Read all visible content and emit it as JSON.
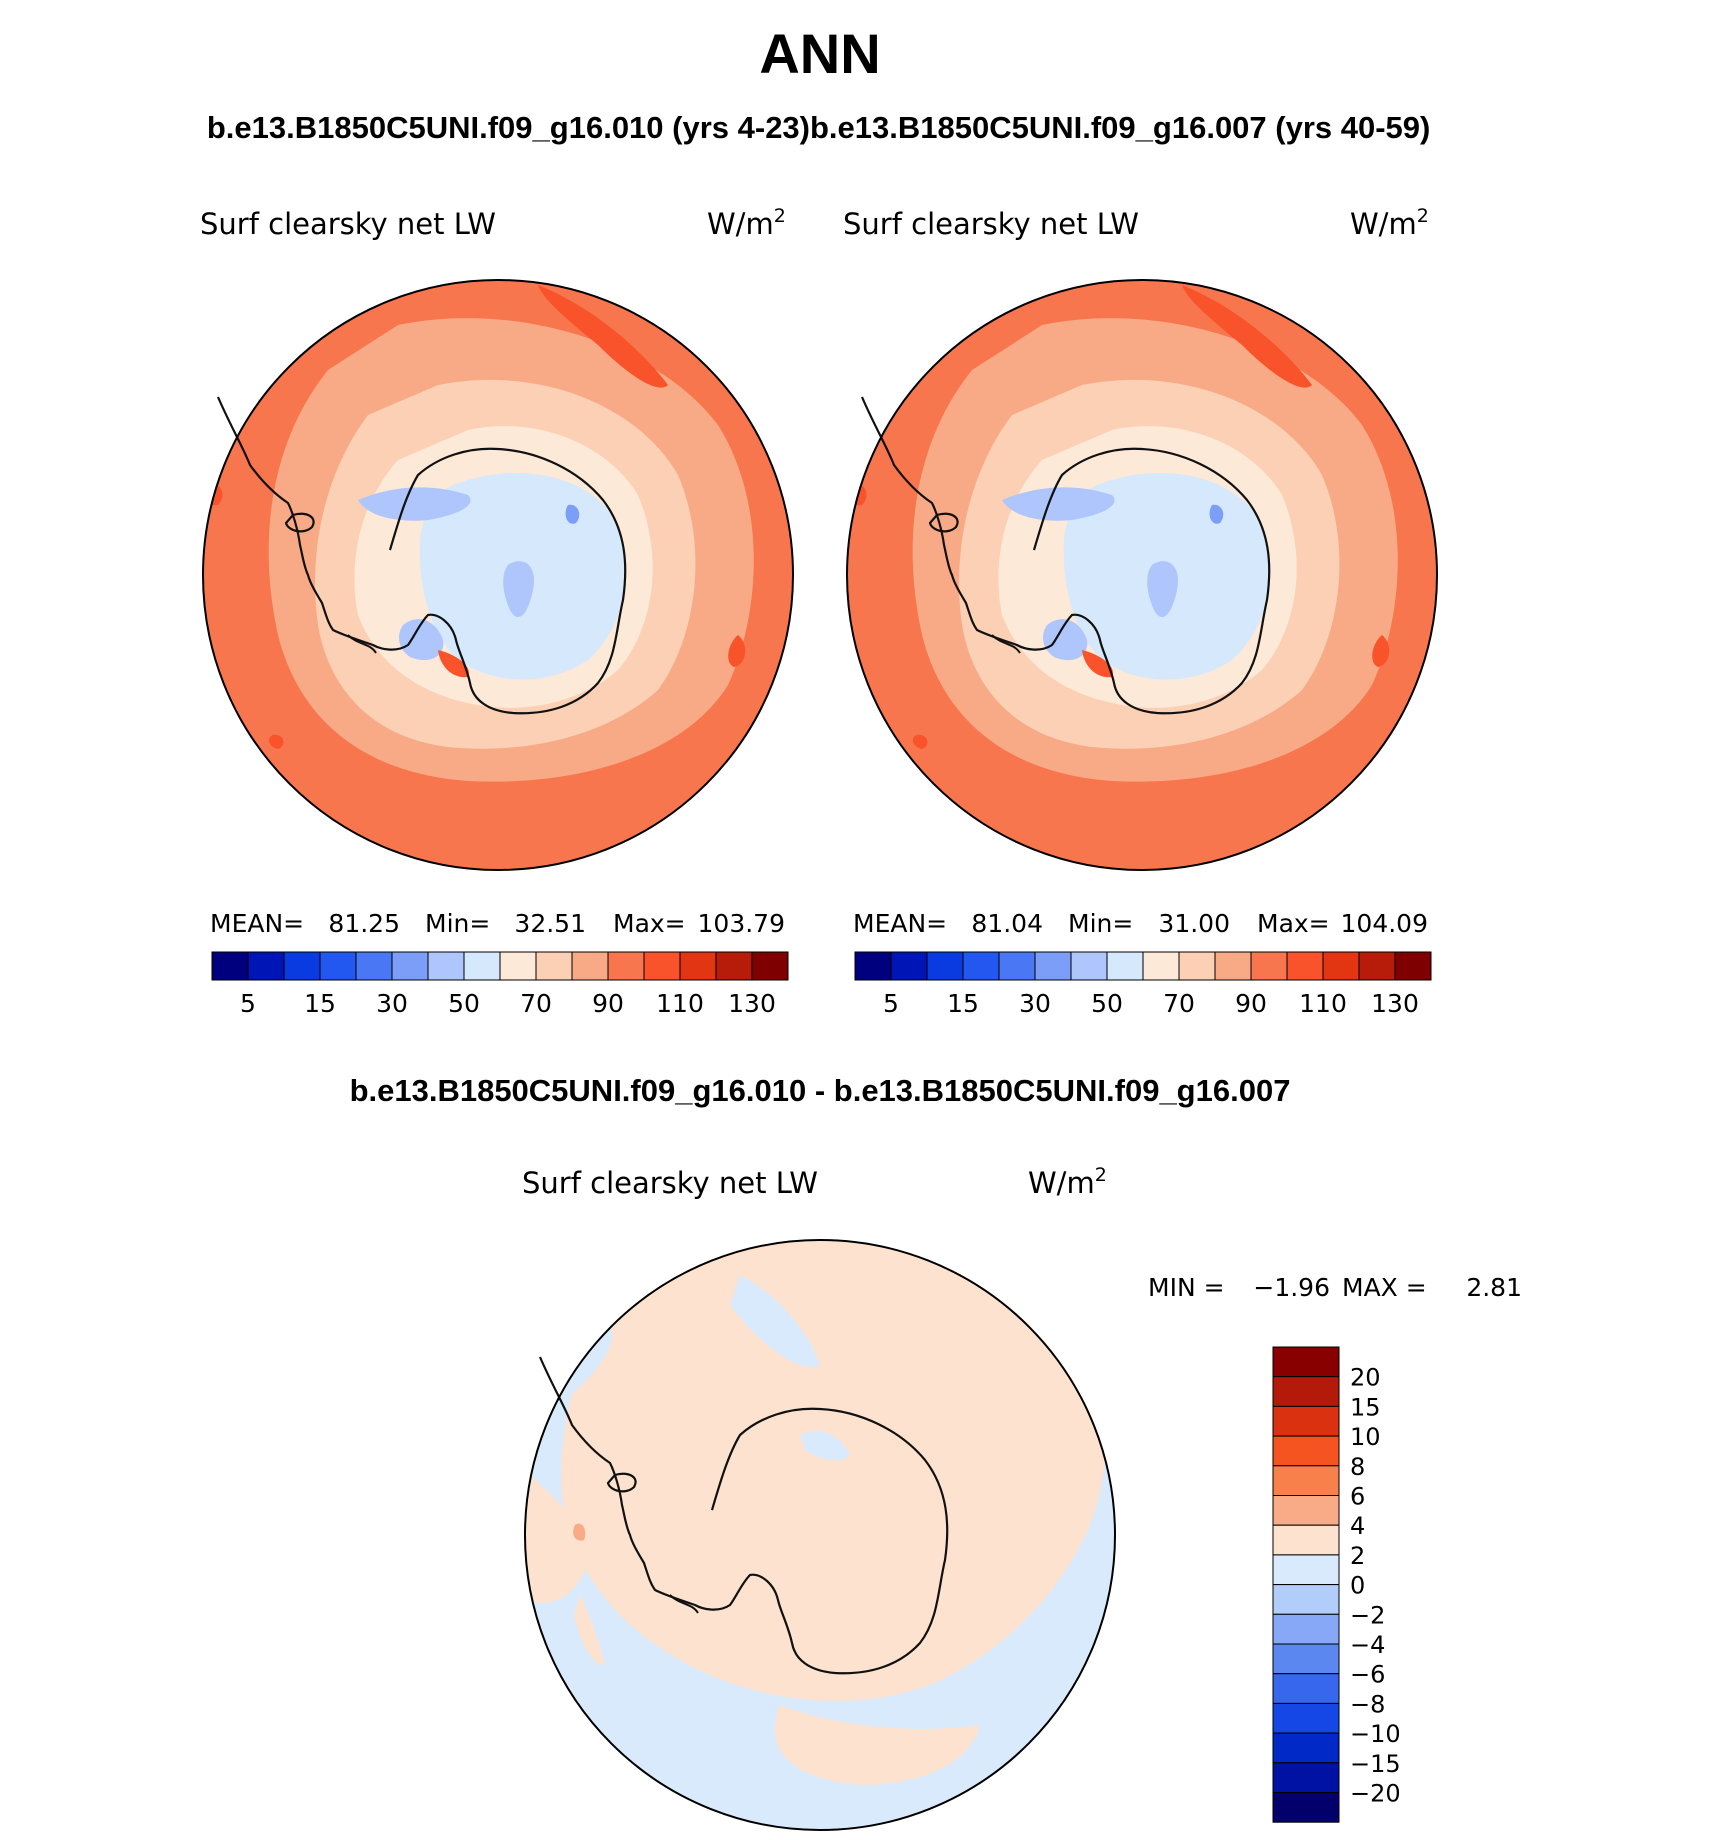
{
  "figure": {
    "title": "ANN",
    "subtitle_left": "b.e13.B1850C5UNI.f09_g16.010 (yrs 4-23)",
    "subtitle_right": "b.e13.B1850C5UNI.f09_g16.007 (yrs 40-59)",
    "diff_title": "b.e13.B1850C5UNI.f09_g16.010 - b.e13.B1850C5UNI.f09_g16.007"
  },
  "chart_data": [
    {
      "type": "heatmap",
      "projection": "south-polar-stereographic",
      "variable": "Surf  clearsky  net  LW",
      "units_base": "W/m",
      "units_exp": "2",
      "stats": {
        "mean_label": "MEAN=",
        "mean": "81.25",
        "min_label": "Min=",
        "min": "32.51",
        "max_label": "Max=",
        "max": "103.79"
      },
      "levels": [
        "5",
        "15",
        "30",
        "50",
        "70",
        "90",
        "110",
        "130"
      ],
      "colors": [
        "#00007f",
        "#0015b5",
        "#0a3be0",
        "#2358f0",
        "#4a78f4",
        "#7d9ef8",
        "#aec6fb",
        "#d6e8fc",
        "#fde9d7",
        "#fbd0b5",
        "#f8aa86",
        "#f7764d",
        "#f8532a",
        "#e23512",
        "#b71c0b",
        "#7e0000"
      ]
    },
    {
      "type": "heatmap",
      "projection": "south-polar-stereographic",
      "variable": "Surf  clearsky  net  LW",
      "units_base": "W/m",
      "units_exp": "2",
      "stats": {
        "mean_label": "MEAN=",
        "mean": "81.04",
        "min_label": "Min=",
        "min": "31.00",
        "max_label": "Max=",
        "max": "104.09"
      },
      "levels": [
        "5",
        "15",
        "30",
        "50",
        "70",
        "90",
        "110",
        "130"
      ],
      "colors": [
        "#00007f",
        "#0015b5",
        "#0a3be0",
        "#2358f0",
        "#4a78f4",
        "#7d9ef8",
        "#aec6fb",
        "#d6e8fc",
        "#fde9d7",
        "#fbd0b5",
        "#f8aa86",
        "#f7764d",
        "#f8532a",
        "#e23512",
        "#b71c0b",
        "#7e0000"
      ]
    },
    {
      "type": "heatmap",
      "projection": "south-polar-stereographic",
      "variable": "Surf  clearsky  net  LW",
      "units_base": "W/m",
      "units_exp": "2",
      "stats": {
        "min_label": "MIN =",
        "min": "−1.96",
        "max_label": "MAX =",
        "max": "2.81"
      },
      "levels": [
        "20",
        "15",
        "10",
        "8",
        "6",
        "4",
        "2",
        "0",
        "−2",
        "−4",
        "−6",
        "−8",
        "−10",
        "−15",
        "−20"
      ],
      "colors": [
        "#880000",
        "#b41a0a",
        "#da3211",
        "#f5531f",
        "#f7804b",
        "#f9aa86",
        "#fde3cf",
        "#d9eafc",
        "#b3cdfb",
        "#86a8f6",
        "#5b88f0",
        "#3667ed",
        "#1547e6",
        "#0029c8",
        "#0012a3",
        "#03006b"
      ]
    }
  ]
}
